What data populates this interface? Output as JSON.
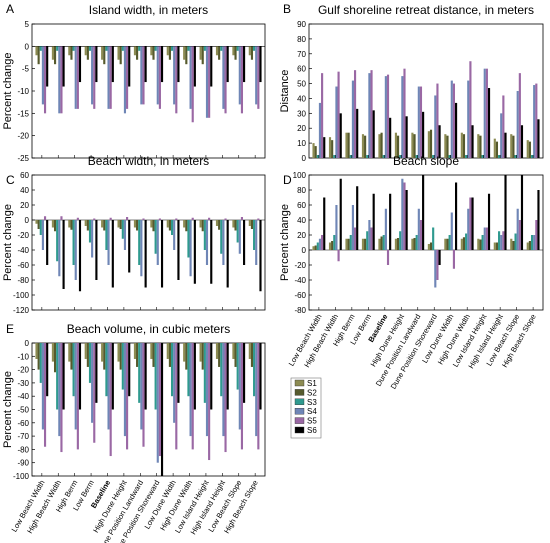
{
  "colors": {
    "S1": "#8c8b52",
    "S2": "#565a2d",
    "S3": "#2f9a8f",
    "S4": "#6f86b6",
    "S5": "#9a68a4",
    "S6": "#000000"
  },
  "legend": [
    "S1",
    "S2",
    "S3",
    "S4",
    "S5",
    "S6"
  ],
  "categories": [
    "Low Beach Width",
    "High Beach Width",
    "High Berm",
    "Low Berm",
    "Baseline",
    "High Dune Height",
    "Dune Position Landward",
    "Dune Position Shoreward",
    "Low Dune Width",
    "High Dune Width",
    "Low Island Height",
    "High Island Height",
    "Low Beach Slope",
    "High Beach Slope"
  ],
  "bold_category": "Baseline",
  "chart_data": [
    {
      "type": "bar",
      "panel": "A",
      "title": "Island width, in meters",
      "ylabel": "Percent change",
      "ylim": [
        -25,
        5
      ],
      "yticks": [
        5,
        0,
        -5,
        -10,
        -15,
        -20,
        -25
      ],
      "series": [
        {
          "name": "S1",
          "values": [
            -2,
            -3,
            -2,
            -2,
            -3,
            -3,
            -2,
            -2,
            -2,
            -3,
            -3,
            -2,
            -2,
            -2
          ]
        },
        {
          "name": "S2",
          "values": [
            -4,
            -4,
            -3,
            -3,
            -4,
            -4,
            -3,
            -3,
            -3,
            -4,
            -4,
            -3,
            -3,
            -3
          ]
        },
        {
          "name": "S3",
          "values": [
            -1,
            -1,
            -1,
            -1,
            -1,
            -1,
            -1,
            -1,
            -1,
            -1,
            -1,
            -1,
            -1,
            -1
          ]
        },
        {
          "name": "S4",
          "values": [
            -13,
            -15,
            -14,
            -13,
            -14,
            -15,
            -13,
            -13,
            -13,
            -14,
            -16,
            -14,
            -13,
            -13
          ]
        },
        {
          "name": "S5",
          "values": [
            -15,
            -15,
            -14,
            -14,
            -14,
            -14,
            -13,
            -14,
            -15,
            -17,
            -16,
            -15,
            -15,
            -14
          ]
        },
        {
          "name": "S6",
          "values": [
            -9,
            -9,
            -8,
            -8,
            -8,
            -9,
            -8,
            -8,
            -8,
            -9,
            -9,
            -8,
            -8,
            -8
          ]
        }
      ]
    },
    {
      "type": "bar",
      "panel": "B",
      "title": "Gulf shoreline retreat distance, in meters",
      "ylabel": "Distance",
      "ylim": [
        0,
        90
      ],
      "yticks": [
        90,
        80,
        70,
        60,
        50,
        40,
        30,
        20,
        10,
        0
      ],
      "series": [
        {
          "name": "S1",
          "values": [
            10,
            14,
            17,
            16,
            16,
            17,
            17,
            18,
            16,
            17,
            16,
            13,
            16,
            12
          ]
        },
        {
          "name": "S2",
          "values": [
            8,
            12,
            17,
            15,
            17,
            15,
            16,
            19,
            15,
            16,
            15,
            11,
            15,
            11
          ]
        },
        {
          "name": "S3",
          "values": [
            2,
            2,
            2,
            2,
            2,
            2,
            2,
            2,
            2,
            2,
            2,
            2,
            2,
            2
          ]
        },
        {
          "name": "S4",
          "values": [
            37,
            48,
            52,
            57,
            55,
            55,
            48,
            42,
            52,
            52,
            60,
            30,
            45,
            49
          ]
        },
        {
          "name": "S5",
          "values": [
            57,
            58,
            59,
            59,
            56,
            60,
            48,
            50,
            50,
            65,
            60,
            42,
            57,
            50
          ]
        },
        {
          "name": "S6",
          "values": [
            14,
            30,
            33,
            32,
            27,
            28,
            31,
            22,
            37,
            22,
            47,
            17,
            22,
            26
          ]
        }
      ]
    },
    {
      "type": "bar",
      "panel": "C",
      "title": "Beach width, in meters",
      "ylabel": "Percent change",
      "ylim": [
        -120,
        60
      ],
      "yticks": [
        60,
        40,
        20,
        0,
        -20,
        -40,
        -60,
        -80,
        -100,
        -120
      ],
      "series": [
        {
          "name": "S1",
          "values": [
            -5,
            -10,
            -10,
            -8,
            -10,
            -10,
            -10,
            -10,
            -10,
            -10,
            -10,
            -8,
            -10,
            -8
          ]
        },
        {
          "name": "S2",
          "values": [
            -12,
            -15,
            -13,
            -14,
            -14,
            -12,
            -14,
            -15,
            -14,
            -15,
            -15,
            -13,
            -14,
            -12
          ]
        },
        {
          "name": "S3",
          "values": [
            -20,
            -55,
            -60,
            -30,
            -40,
            -25,
            -60,
            -45,
            -20,
            -50,
            -40,
            -45,
            -30,
            -40
          ]
        },
        {
          "name": "S4",
          "values": [
            -40,
            -75,
            -80,
            -50,
            -60,
            -40,
            -75,
            -60,
            -40,
            -75,
            -60,
            -60,
            -45,
            -60
          ]
        },
        {
          "name": "S5",
          "values": [
            5,
            5,
            3,
            2,
            3,
            4,
            2,
            2,
            2,
            3,
            3,
            2,
            4,
            2
          ]
        },
        {
          "name": "S6",
          "values": [
            -60,
            -92,
            -95,
            -80,
            -90,
            -70,
            -90,
            -90,
            -80,
            -85,
            -85,
            -90,
            -60,
            -95
          ]
        }
      ]
    },
    {
      "type": "bar",
      "panel": "D",
      "title": "Beach slope",
      "ylabel": "Percent change",
      "ylim": [
        -80,
        100
      ],
      "yticks": [
        100,
        80,
        60,
        40,
        20,
        0,
        -20,
        -40,
        -60,
        -80
      ],
      "series": [
        {
          "name": "S1",
          "values": [
            5,
            10,
            15,
            15,
            15,
            15,
            15,
            8,
            15,
            15,
            15,
            10,
            15,
            10
          ]
        },
        {
          "name": "S2",
          "values": [
            6,
            12,
            15,
            15,
            18,
            16,
            16,
            10,
            15,
            17,
            14,
            10,
            12,
            12
          ]
        },
        {
          "name": "S3",
          "values": [
            10,
            20,
            20,
            25,
            20,
            25,
            20,
            30,
            20,
            22,
            20,
            25,
            22,
            20
          ]
        },
        {
          "name": "S4",
          "values": [
            15,
            60,
            60,
            40,
            55,
            95,
            55,
            -50,
            50,
            55,
            30,
            20,
            55,
            20
          ]
        },
        {
          "name": "S5",
          "values": [
            20,
            -15,
            30,
            30,
            -20,
            90,
            40,
            -40,
            -25,
            70,
            30,
            25,
            40,
            40
          ]
        },
        {
          "name": "S6",
          "values": [
            70,
            95,
            85,
            75,
            75,
            80,
            100,
            -20,
            90,
            70,
            75,
            100,
            100,
            80
          ]
        }
      ]
    },
    {
      "type": "bar",
      "panel": "E",
      "title": "Beach volume, in cubic meters",
      "ylabel": "Percent change",
      "ylim": [
        -100,
        0
      ],
      "yticks": [
        0,
        -10,
        -20,
        -30,
        -40,
        -50,
        -60,
        -70,
        -80,
        -90,
        -100
      ],
      "series": [
        {
          "name": "S1",
          "values": [
            -12,
            -14,
            -14,
            -12,
            -14,
            -14,
            -12,
            -12,
            -12,
            -14,
            -14,
            -12,
            -12,
            -12
          ]
        },
        {
          "name": "S2",
          "values": [
            -20,
            -22,
            -20,
            -18,
            -20,
            -20,
            -18,
            -18,
            -18,
            -20,
            -20,
            -18,
            -18,
            -18
          ]
        },
        {
          "name": "S3",
          "values": [
            -30,
            -50,
            -40,
            -30,
            -40,
            -35,
            -45,
            -50,
            -40,
            -40,
            -45,
            -40,
            -35,
            -40
          ]
        },
        {
          "name": "S4",
          "values": [
            -65,
            -70,
            -65,
            -60,
            -65,
            -70,
            -65,
            -90,
            -60,
            -70,
            -70,
            -70,
            -65,
            -70
          ]
        },
        {
          "name": "S5",
          "values": [
            -78,
            -82,
            -80,
            -75,
            -85,
            -80,
            -78,
            -85,
            -80,
            -80,
            -88,
            -82,
            -80,
            -80
          ]
        },
        {
          "name": "S6",
          "values": [
            -40,
            -50,
            -50,
            -45,
            -50,
            -40,
            -50,
            -100,
            -45,
            -50,
            -50,
            -50,
            -45,
            -50
          ]
        }
      ]
    }
  ]
}
